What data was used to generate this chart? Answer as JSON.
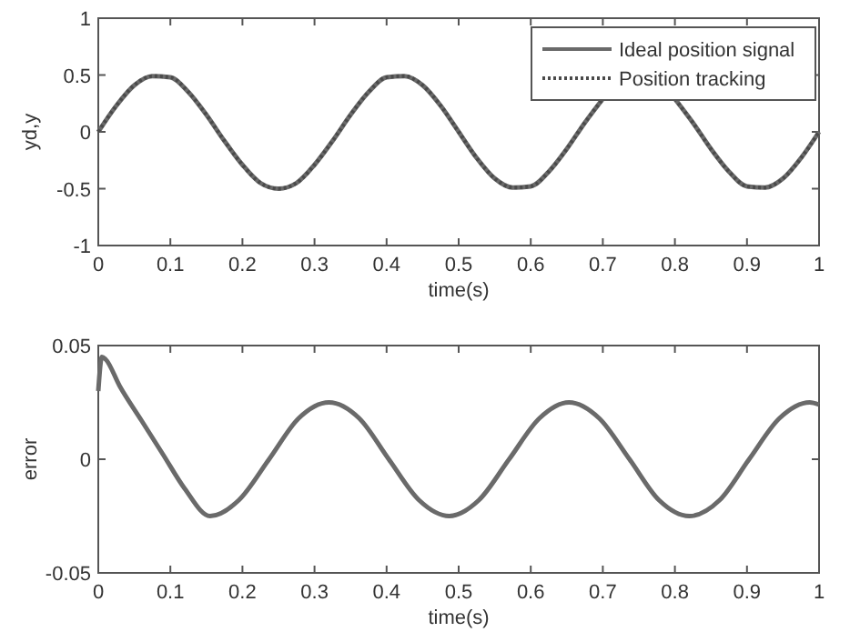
{
  "chart_data": [
    {
      "type": "line",
      "xlabel": "time(s)",
      "ylabel": "yd,y",
      "xlim": [
        0,
        1
      ],
      "ylim": [
        -1,
        1
      ],
      "xticks": [
        0,
        0.1,
        0.2,
        0.3,
        0.4,
        0.5,
        0.6,
        0.7,
        0.8,
        0.9,
        1
      ],
      "yticks": [
        -1,
        -0.5,
        0,
        0.5,
        1
      ],
      "grid": false,
      "legend": "top right",
      "x": [
        0,
        0.025,
        0.05,
        0.075,
        0.1,
        0.125,
        0.15,
        0.175,
        0.2,
        0.225,
        0.25,
        0.275,
        0.3,
        0.325,
        0.35,
        0.375,
        0.4,
        0.425,
        0.45,
        0.475,
        0.5,
        0.525,
        0.55,
        0.575,
        0.6,
        0.625,
        0.65,
        0.675,
        0.7,
        0.725,
        0.75,
        0.775,
        0.8,
        0.825,
        0.85,
        0.875,
        0.9,
        0.925,
        0.95,
        0.975,
        1
      ],
      "series": [
        {
          "name": "Ideal position signal",
          "color": "#6a6a6a",
          "line_style": "solid",
          "values": [
            0,
            0.23,
            0.41,
            0.49,
            0.48,
            0.35,
            0.15,
            -0.08,
            -0.29,
            -0.45,
            -0.5,
            -0.45,
            -0.29,
            -0.08,
            0.15,
            0.35,
            0.48,
            0.49,
            0.41,
            0.23,
            0,
            -0.23,
            -0.41,
            -0.49,
            -0.48,
            -0.35,
            -0.15,
            0.08,
            0.29,
            null,
            null,
            null,
            0.29,
            0.08,
            -0.15,
            -0.35,
            -0.48,
            -0.49,
            -0.41,
            -0.23,
            0
          ]
        },
        {
          "name": "Position tracking",
          "color": "#4a4a4a",
          "line_style": "dotted",
          "values": [
            0,
            0.23,
            0.41,
            0.49,
            0.48,
            0.35,
            0.15,
            -0.08,
            -0.29,
            -0.45,
            -0.5,
            -0.45,
            -0.29,
            -0.08,
            0.15,
            0.35,
            0.48,
            0.49,
            0.41,
            0.23,
            0,
            -0.23,
            -0.41,
            -0.49,
            -0.48,
            -0.35,
            -0.15,
            0.08,
            0.29,
            null,
            null,
            null,
            0.29,
            0.08,
            -0.15,
            -0.35,
            -0.48,
            -0.49,
            -0.41,
            -0.23,
            0
          ]
        }
      ]
    },
    {
      "type": "line",
      "xlabel": "time(s)",
      "ylabel": "error",
      "xlim": [
        0,
        1
      ],
      "ylim": [
        -0.05,
        0.05
      ],
      "xticks": [
        0,
        0.1,
        0.2,
        0.3,
        0.4,
        0.5,
        0.6,
        0.7,
        0.8,
        0.9,
        1
      ],
      "yticks": [
        -0.05,
        0,
        0.05
      ],
      "grid": false,
      "x": [
        0,
        0.005,
        0.01,
        0.03,
        0.06,
        0.09,
        0.12,
        0.155,
        0.195,
        0.237,
        0.278,
        0.32,
        0.362,
        0.403,
        0.445,
        0.487,
        0.528,
        0.57,
        0.612,
        0.653,
        0.695,
        0.737,
        0.778,
        0.82,
        0.862,
        0.903,
        0.945,
        0.987,
        1
      ],
      "series": [
        {
          "color": "#6a6a6a",
          "line_style": "solid",
          "values": [
            0.03,
            0.045,
            0.044,
            0.032,
            0.017,
            0.002,
            -0.013,
            -0.025,
            -0.018,
            0,
            0.018,
            0.025,
            0.018,
            0,
            -0.018,
            -0.025,
            -0.018,
            0,
            0.018,
            0.025,
            0.018,
            0,
            -0.018,
            -0.025,
            -0.018,
            0,
            0.018,
            0.025,
            0.024
          ]
        }
      ]
    }
  ]
}
